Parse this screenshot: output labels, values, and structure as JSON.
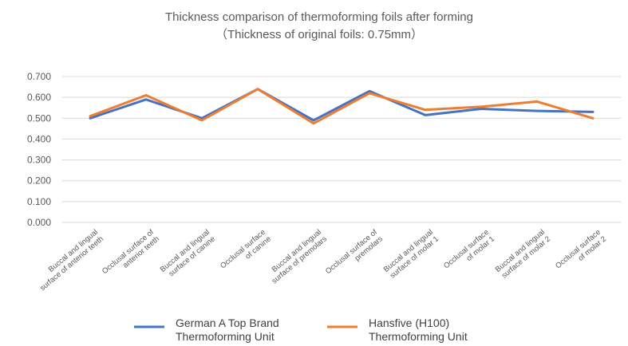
{
  "chart_data": {
    "type": "line",
    "title": "Thickness comparison of thermoforming foils after forming",
    "subtitle": "（Thickness of original foils: 0.75mm）",
    "categories": [
      [
        "Buccal and lingual",
        "surface of anterior teeth"
      ],
      [
        "Occlusal surface of",
        "anterior teeth"
      ],
      [
        "Buccal and lingual",
        "surface of canine"
      ],
      [
        "Occlusal surface",
        "of canine"
      ],
      [
        "Buccal and lingual",
        "surface of premolars"
      ],
      [
        "Occlusal surface of",
        "premolars"
      ],
      [
        "Buccal and lingual",
        "surface of molar 1"
      ],
      [
        "Occlusal surface",
        "of molar 1"
      ],
      [
        "Buccal and lingual",
        "surface of molar 2"
      ],
      [
        "Occlusal surface",
        "of molar 2"
      ]
    ],
    "series": [
      {
        "name": "German A Top Brand Thermoforming Unit",
        "name_lines": [
          "German A Top Brand",
          "Thermoforming Unit"
        ],
        "color": "#4472c4",
        "values": [
          0.5,
          0.59,
          0.5,
          0.64,
          0.49,
          0.63,
          0.515,
          0.545,
          0.535,
          0.53
        ]
      },
      {
        "name": "Hansfive (H100) Thermoforming Unit",
        "name_lines": [
          "Hansfive (H100)",
          "Thermoforming Unit"
        ],
        "color": "#ed7d31",
        "values": [
          0.51,
          0.61,
          0.49,
          0.64,
          0.475,
          0.62,
          0.54,
          0.555,
          0.58,
          0.5
        ]
      }
    ],
    "yticks": [
      "0.000",
      "0.100",
      "0.200",
      "0.300",
      "0.400",
      "0.500",
      "0.600",
      "0.700"
    ],
    "ylim": [
      0,
      0.7
    ],
    "grid": true,
    "legend_position": "bottom"
  }
}
